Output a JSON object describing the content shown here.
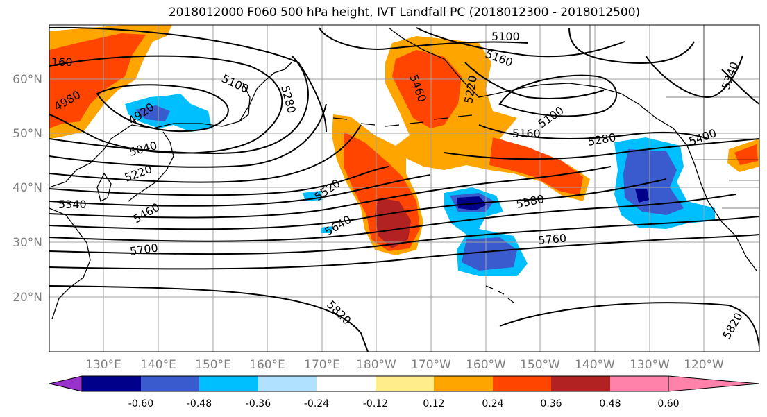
{
  "title": "2018012000 F060 500 hPa height, IVT Landfall PC (2018012300 - 2018012500)",
  "lat_labels": [
    "60°N",
    "50°N",
    "40°N",
    "30°N",
    "20°N"
  ],
  "lon_labels": [
    "130°E",
    "140°E",
    "150°E",
    "160°E",
    "170°E",
    "180°W",
    "170°W",
    "160°W",
    "150°W",
    "140°W",
    "130°W",
    "120°W"
  ],
  "contour_labels": [
    "160",
    "4980",
    "4920",
    "5100",
    "5280",
    "5040",
    "5220",
    "5340",
    "5460",
    "5700",
    "5520",
    "5640",
    "5820",
    "5100",
    "5160",
    "5220",
    "5460",
    "5160",
    "5100",
    "5280",
    "5580",
    "5760",
    "5400",
    "5340",
    "5820"
  ],
  "colorbar": {
    "ticks": [
      "-0.60",
      "-0.48",
      "-0.36",
      "-0.24",
      "-0.12",
      "0.12",
      "0.24",
      "0.36",
      "0.48",
      "0.60"
    ],
    "colors": [
      "#9932cc",
      "#00008b",
      "#3a5bcd",
      "#00bfff",
      "#b0e2ff",
      "#ffffff",
      "#ffec8b",
      "#ffa500",
      "#ff4500",
      "#b22222",
      "#ff82ab"
    ]
  }
}
